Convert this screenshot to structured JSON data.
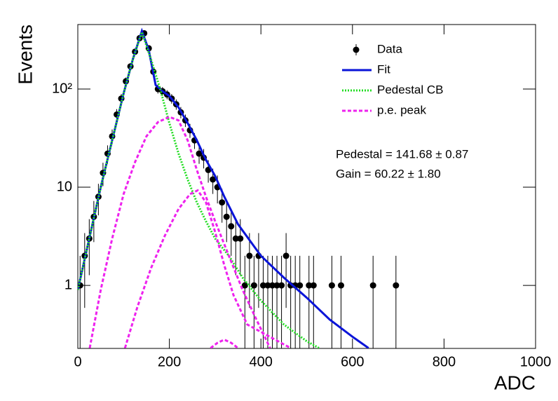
{
  "chart_data": {
    "type": "line",
    "xlabel": "ADC",
    "ylabel": "Events",
    "xlim": [
      0,
      1000
    ],
    "xticks": [
      0,
      200,
      400,
      600,
      800,
      1000
    ],
    "ylim": [
      0.228,
      454
    ],
    "log_y": true,
    "yticks": [
      1,
      10,
      {
        "value": 100,
        "label": "10²"
      }
    ],
    "legend": "upper right",
    "annotations": [
      "Pedestal = 141.68 ± 0.87",
      "Gain = 60.22 ± 1.80"
    ],
    "series": [
      {
        "name": "Data",
        "color": "#000000",
        "kind": "points",
        "x": [
          5,
          15,
          25,
          35,
          45,
          55,
          65,
          75,
          85,
          95,
          105,
          115,
          125,
          135,
          145,
          155,
          165,
          175,
          185,
          195,
          205,
          215,
          225,
          235,
          245,
          255,
          265,
          275,
          285,
          295,
          305,
          315,
          325,
          335,
          345,
          355,
          365,
          375,
          385,
          395,
          405,
          415,
          425,
          435,
          445,
          455,
          465,
          475,
          485,
          505,
          515,
          555,
          575,
          645,
          695
        ],
        "values": [
          1,
          2,
          3,
          5,
          8,
          14,
          22,
          33,
          55,
          80,
          120,
          170,
          240,
          330,
          370,
          260,
          150,
          100,
          95,
          88,
          80,
          70,
          58,
          48,
          38,
          30,
          22,
          20,
          15,
          12,
          10,
          7,
          5,
          4,
          3,
          3,
          1,
          2,
          1,
          2,
          1,
          1,
          1,
          1,
          1,
          2,
          1,
          1,
          1,
          1,
          1,
          1,
          1,
          1,
          1
        ],
        "errors": [
          1,
          1.41,
          1.73,
          2.24,
          2.83,
          3.74,
          4.69,
          5.74,
          7.42,
          8.94,
          10.95,
          13.04,
          15.49,
          18.17,
          19.24,
          16.12,
          12.25,
          10,
          9.75,
          9.38,
          8.94,
          8.37,
          7.62,
          6.93,
          6.16,
          5.48,
          4.69,
          4.47,
          3.87,
          3.46,
          3.16,
          2.65,
          2.24,
          2,
          1.73,
          1.73,
          1,
          1.41,
          1,
          1.41,
          1,
          1,
          1,
          1,
          1,
          1.41,
          1,
          1,
          1,
          1,
          1,
          1,
          1,
          1,
          1
        ]
      },
      {
        "name": "Fit",
        "color": "#0a14d8",
        "kind": "line",
        "dash": "none",
        "x": [
          0,
          25,
          50,
          75,
          100,
          120,
          140,
          155,
          170,
          185,
          200,
          220,
          240,
          260,
          280,
          300,
          320,
          350,
          400,
          450,
          500,
          550,
          600,
          635
        ],
        "values": [
          0.9,
          3,
          10,
          30,
          90,
          200,
          390,
          250,
          110,
          95,
          85,
          65,
          45,
          30,
          19,
          13,
          8,
          4.2,
          2.0,
          1.2,
          0.75,
          0.45,
          0.3,
          0.23
        ]
      },
      {
        "name": "Pedestal CB",
        "color": "#22dd22",
        "kind": "line",
        "dash": "2 2",
        "x": [
          0,
          25,
          50,
          75,
          100,
          120,
          140,
          160,
          180,
          200,
          220,
          240,
          260,
          280,
          300,
          330,
          360,
          400,
          450,
          500,
          527
        ],
        "values": [
          0.9,
          3,
          10,
          30,
          90,
          200,
          380,
          200,
          100,
          45,
          22,
          12,
          7,
          4.5,
          3,
          2,
          1.2,
          0.7,
          0.4,
          0.27,
          0.23
        ]
      },
      {
        "name": "p.e. peak",
        "color": "#ee22ee",
        "kind": "line",
        "dash": "5 3",
        "x": [
          26,
          50,
          75,
          100,
          125,
          150,
          175,
          200,
          220,
          240,
          260,
          280,
          300,
          330,
          360,
          390,
          420,
          null,
          103,
          130,
          160,
          190,
          220,
          245,
          262,
          280,
          300,
          320,
          340,
          370,
          465,
          null,
          290,
          305,
          320,
          335,
          350
        ],
        "values": [
          0.23,
          0.9,
          3,
          8.5,
          18,
          33,
          46,
          52,
          48,
          30,
          15,
          8,
          4.5,
          2,
          0.9,
          0.45,
          0.23,
          null,
          0.23,
          0.6,
          1.5,
          3.2,
          6,
          8.5,
          9.3,
          7,
          3.5,
          1.6,
          0.8,
          0.4,
          0.23,
          null,
          0.23,
          0.26,
          0.28,
          0.26,
          0.23
        ]
      }
    ]
  }
}
